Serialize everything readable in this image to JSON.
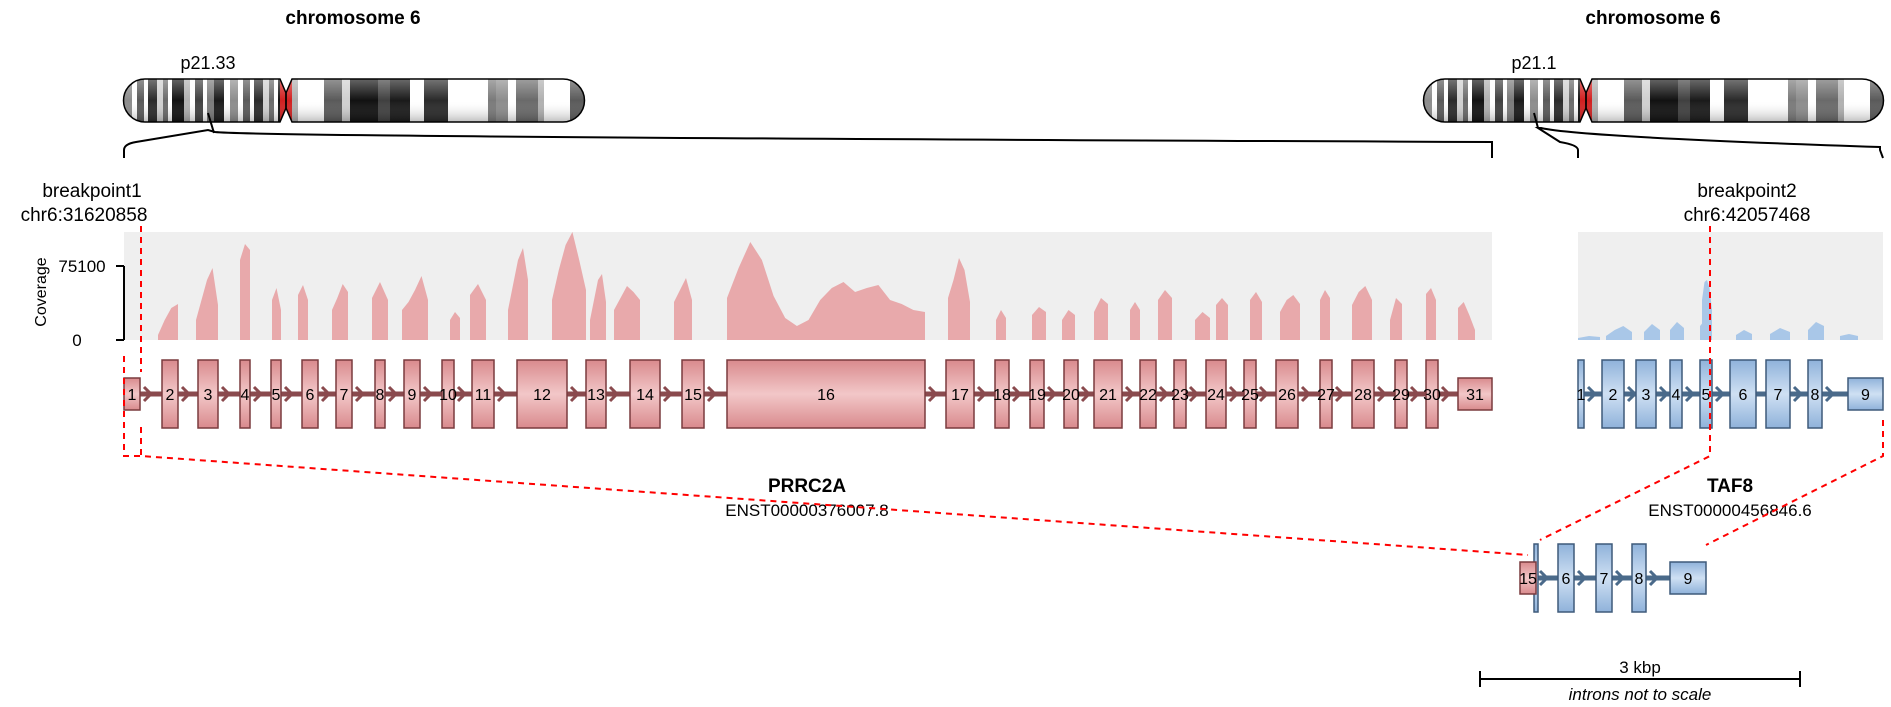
{
  "left": {
    "chrom_title": "chromosome 6",
    "band": "p21.33",
    "breakpoint_title": "breakpoint1",
    "breakpoint_coord": "chr6:31620858",
    "gene": "PRRC2A",
    "transcript": "ENST00000376007.8",
    "exons": [
      "1",
      "2",
      "3",
      "4",
      "5",
      "6",
      "7",
      "8",
      "9",
      "10",
      "11",
      "12",
      "13",
      "14",
      "15",
      "16",
      "17",
      "18",
      "19",
      "20",
      "21",
      "22",
      "23",
      "24",
      "25",
      "26",
      "27",
      "28",
      "29",
      "30",
      "31"
    ]
  },
  "right": {
    "chrom_title": "chromosome 6",
    "band": "p21.1",
    "breakpoint_title": "breakpoint2",
    "breakpoint_coord": "chr6:42057468",
    "gene": "TAF8",
    "transcript": "ENST00000456846.6",
    "exons": [
      "1",
      "2",
      "3",
      "4",
      "5",
      "6",
      "7",
      "8",
      "9"
    ]
  },
  "coverage": {
    "axis_title": "Coverage",
    "ymax_label": "75100",
    "ymin_label": "0"
  },
  "fusion": {
    "exons": [
      "15",
      "6",
      "7",
      "8",
      "9"
    ]
  },
  "scale": {
    "label": "3 kbp",
    "note": "introns not to scale"
  },
  "colors": {
    "gene1_fill": "#e8a9ab",
    "gene1_stroke": "#7a3b3e",
    "gene2_fill": "#a9c7e8",
    "gene2_stroke": "#3e5a7a",
    "coverage_bg": "#efefef",
    "breakpoint": "#ff0000"
  }
}
